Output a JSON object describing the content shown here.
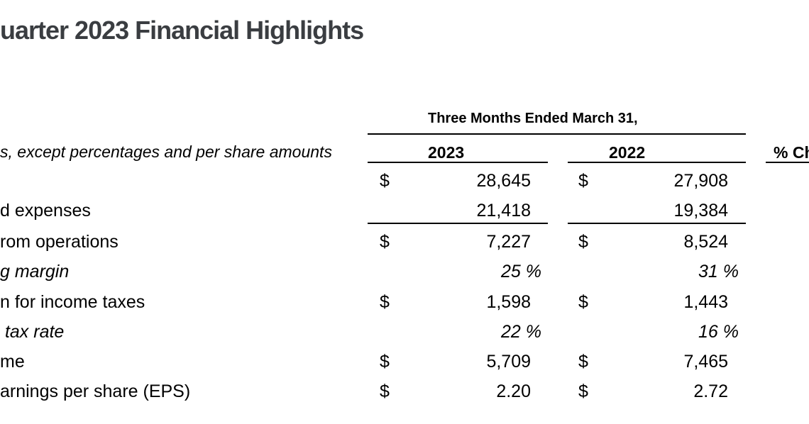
{
  "page": {
    "title_fragment": "uarter 2023 Financial Highlights"
  },
  "table": {
    "note_fragment": "s, except percentages and per share amounts",
    "period_header": "Three Months Ended March 31,",
    "col_2023": "2023",
    "col_2022": "2022",
    "pct_change_fragment": "% Ch",
    "rows": [
      {
        "label": "",
        "cur_2023": "$",
        "val_2023": "28,645",
        "cur_2022": "$",
        "val_2022": "27,908",
        "italic": false,
        "percent": false
      },
      {
        "label": "d expenses",
        "cur_2023": "",
        "val_2023": "21,418",
        "cur_2022": "",
        "val_2022": "19,384",
        "italic": false,
        "percent": false
      },
      {
        "label": "rom operations",
        "cur_2023": "$",
        "val_2023": "7,227",
        "cur_2022": "$",
        "val_2022": "8,524",
        "italic": false,
        "percent": false
      },
      {
        "label": "g margin",
        "cur_2023": "",
        "val_2023": "25 %",
        "cur_2022": "",
        "val_2022": "31 %",
        "italic": true,
        "percent": true
      },
      {
        "label": "n for income taxes",
        "cur_2023": "$",
        "val_2023": "1,598",
        "cur_2022": "$",
        "val_2022": "1,443",
        "italic": false,
        "percent": false
      },
      {
        "label": " tax rate",
        "cur_2023": "",
        "val_2023": "22 %",
        "cur_2022": "",
        "val_2022": "16 %",
        "italic": true,
        "percent": true
      },
      {
        "label": "me",
        "cur_2023": "$",
        "val_2023": "5,709",
        "cur_2022": "$",
        "val_2022": "7,465",
        "italic": false,
        "percent": false
      },
      {
        "label": "arnings per share (EPS)",
        "cur_2023": "$",
        "val_2023": "2.20",
        "cur_2022": "$",
        "val_2022": "2.72",
        "italic": false,
        "percent": false
      }
    ]
  },
  "colors": {
    "title_text": "#3a3d41",
    "table_text": "#000000",
    "rule": "#000000",
    "background": "#ffffff"
  }
}
